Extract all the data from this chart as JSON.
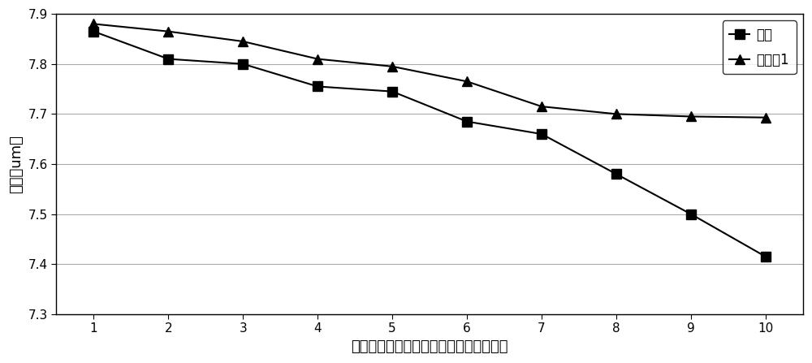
{
  "x": [
    1,
    2,
    3,
    4,
    5,
    6,
    7,
    8,
    9,
    10
  ],
  "traditional": [
    7.865,
    7.81,
    7.8,
    7.755,
    7.745,
    7.685,
    7.66,
    7.58,
    7.5,
    7.415
  ],
  "example1": [
    7.88,
    7.865,
    7.845,
    7.81,
    7.795,
    7.765,
    7.715,
    7.7,
    7.695,
    7.693
  ],
  "xlabel": "测量点（从衬底片靠近进气口一端开始）",
  "ylabel": "厅度（um）",
  "legend_traditional": "传统",
  "legend_example1": "实施例1",
  "ylim_min": 7.3,
  "ylim_max": 7.9,
  "yticks": [
    7.3,
    7.4,
    7.5,
    7.6,
    7.7,
    7.8,
    7.9
  ],
  "line_color": "#000000",
  "bg_color": "#ffffff",
  "grid_color": "#aaaaaa"
}
